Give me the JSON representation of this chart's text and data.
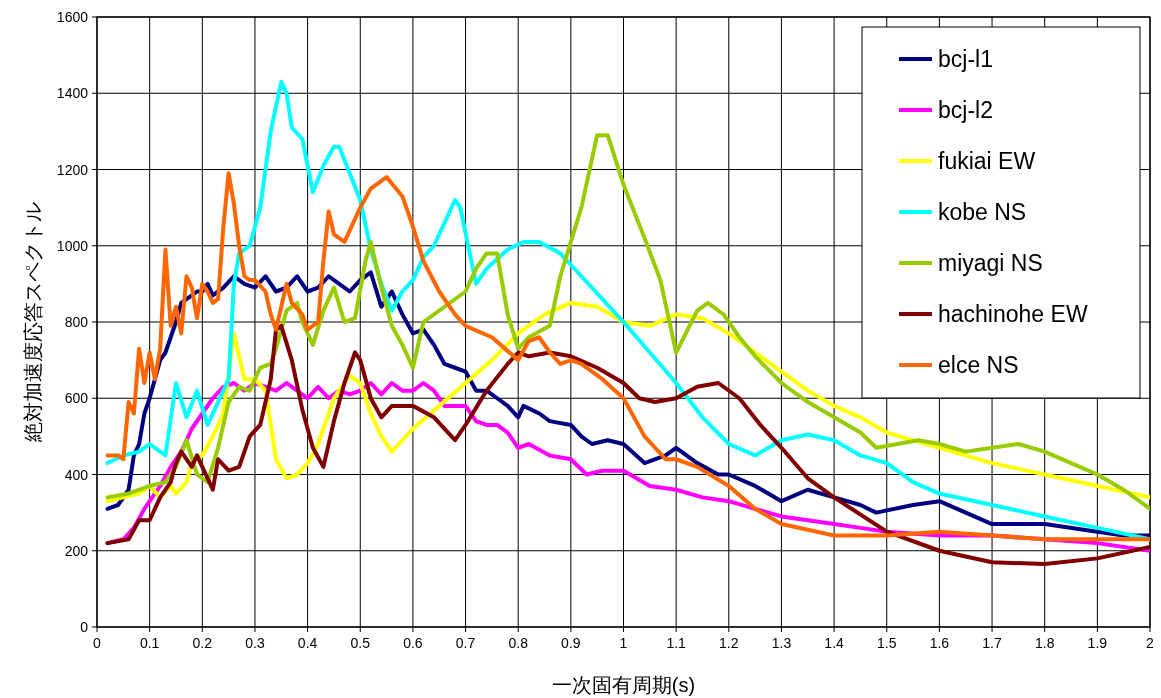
{
  "chart_data": {
    "type": "line",
    "xlabel": "一次固有周期(s)",
    "ylabel": "絶対加速度応答スペクトル",
    "xlim": [
      0,
      2
    ],
    "xticks": [
      0,
      0.1,
      0.2,
      0.3,
      0.4,
      0.5,
      0.6,
      0.7,
      0.8,
      0.9,
      1,
      1.1,
      1.2,
      1.3,
      1.4,
      1.5,
      1.6,
      1.7,
      1.8,
      1.9,
      2
    ],
    "ylim": [
      0,
      1600
    ],
    "yticks": [
      0,
      200,
      400,
      600,
      800,
      1000,
      1200,
      1400,
      1600
    ],
    "grid": true,
    "legend": "top right",
    "series": [
      {
        "name": "bcj-l1",
        "color": "#000080",
        "x": [
          0.02,
          0.04,
          0.06,
          0.07,
          0.08,
          0.09,
          0.1,
          0.11,
          0.12,
          0.13,
          0.14,
          0.15,
          0.16,
          0.17,
          0.18,
          0.19,
          0.2,
          0.21,
          0.22,
          0.24,
          0.26,
          0.28,
          0.3,
          0.32,
          0.34,
          0.36,
          0.38,
          0.4,
          0.42,
          0.44,
          0.46,
          0.48,
          0.5,
          0.52,
          0.54,
          0.56,
          0.58,
          0.6,
          0.62,
          0.64,
          0.66,
          0.68,
          0.7,
          0.72,
          0.74,
          0.76,
          0.78,
          0.8,
          0.81,
          0.84,
          0.86,
          0.9,
          0.92,
          0.94,
          0.97,
          1.0,
          1.04,
          1.08,
          1.1,
          1.14,
          1.18,
          1.2,
          1.25,
          1.3,
          1.35,
          1.4,
          1.45,
          1.48,
          1.55,
          1.6,
          1.65,
          1.7,
          1.8,
          1.9,
          1.95,
          2.0
        ],
        "values": [
          310,
          320,
          360,
          450,
          480,
          560,
          600,
          650,
          700,
          720,
          760,
          800,
          850,
          860,
          870,
          880,
          880,
          900,
          870,
          890,
          920,
          900,
          890,
          920,
          880,
          890,
          920,
          880,
          890,
          920,
          900,
          880,
          910,
          930,
          840,
          880,
          820,
          770,
          780,
          740,
          690,
          680,
          670,
          620,
          620,
          600,
          580,
          550,
          580,
          560,
          540,
          530,
          500,
          480,
          490,
          480,
          430,
          450,
          470,
          430,
          400,
          400,
          370,
          330,
          360,
          340,
          320,
          300,
          320,
          330,
          300,
          270,
          270,
          250,
          240,
          240
        ]
      },
      {
        "name": "bcj-l2",
        "color": "#ff00ff",
        "x": [
          0.02,
          0.05,
          0.07,
          0.09,
          0.1,
          0.12,
          0.14,
          0.16,
          0.18,
          0.2,
          0.22,
          0.24,
          0.26,
          0.28,
          0.3,
          0.32,
          0.34,
          0.36,
          0.38,
          0.4,
          0.42,
          0.44,
          0.46,
          0.48,
          0.5,
          0.52,
          0.54,
          0.56,
          0.58,
          0.6,
          0.62,
          0.64,
          0.66,
          0.7,
          0.72,
          0.74,
          0.76,
          0.78,
          0.8,
          0.82,
          0.86,
          0.9,
          0.93,
          0.96,
          1.0,
          1.05,
          1.1,
          1.15,
          1.2,
          1.25,
          1.3,
          1.35,
          1.4,
          1.45,
          1.5,
          1.6,
          1.7,
          1.8,
          1.9,
          2.0
        ],
        "values": [
          220,
          230,
          260,
          310,
          330,
          370,
          420,
          460,
          520,
          560,
          600,
          630,
          640,
          620,
          640,
          630,
          620,
          640,
          620,
          600,
          630,
          600,
          620,
          610,
          620,
          640,
          610,
          640,
          620,
          620,
          640,
          620,
          580,
          580,
          540,
          530,
          530,
          510,
          470,
          480,
          450,
          440,
          400,
          410,
          410,
          370,
          360,
          340,
          330,
          310,
          290,
          280,
          270,
          260,
          250,
          240,
          240,
          230,
          220,
          200
        ]
      },
      {
        "name": "fukiai EW",
        "color": "#ffff00",
        "x": [
          0.02,
          0.05,
          0.08,
          0.1,
          0.12,
          0.14,
          0.15,
          0.17,
          0.18,
          0.2,
          0.22,
          0.24,
          0.26,
          0.28,
          0.3,
          0.32,
          0.34,
          0.36,
          0.38,
          0.4,
          0.42,
          0.45,
          0.48,
          0.5,
          0.52,
          0.54,
          0.56,
          0.6,
          0.65,
          0.7,
          0.75,
          0.8,
          0.85,
          0.9,
          0.95,
          1.0,
          1.05,
          1.1,
          1.15,
          1.2,
          1.25,
          1.3,
          1.35,
          1.4,
          1.45,
          1.5,
          1.6,
          1.7,
          1.8,
          1.9,
          2.0
        ],
        "values": [
          330,
          340,
          350,
          370,
          340,
          370,
          350,
          380,
          430,
          450,
          500,
          560,
          770,
          650,
          650,
          620,
          440,
          390,
          400,
          430,
          480,
          600,
          660,
          640,
          560,
          500,
          460,
          520,
          580,
          640,
          700,
          770,
          820,
          850,
          840,
          800,
          790,
          820,
          810,
          770,
          720,
          670,
          620,
          580,
          550,
          510,
          470,
          430,
          400,
          370,
          340
        ]
      },
      {
        "name": "kobe NS",
        "color": "#00ffff",
        "x": [
          0.02,
          0.05,
          0.08,
          0.1,
          0.12,
          0.13,
          0.15,
          0.17,
          0.19,
          0.21,
          0.23,
          0.25,
          0.26,
          0.27,
          0.29,
          0.31,
          0.33,
          0.35,
          0.36,
          0.37,
          0.39,
          0.41,
          0.43,
          0.45,
          0.46,
          0.48,
          0.5,
          0.52,
          0.54,
          0.56,
          0.58,
          0.6,
          0.62,
          0.64,
          0.66,
          0.68,
          0.69,
          0.72,
          0.74,
          0.78,
          0.81,
          0.84,
          0.88,
          0.92,
          0.96,
          1.0,
          1.05,
          1.1,
          1.15,
          1.2,
          1.25,
          1.3,
          1.35,
          1.4,
          1.45,
          1.5,
          1.55,
          1.6,
          1.7,
          1.8,
          1.9,
          2.0
        ],
        "values": [
          430,
          450,
          460,
          480,
          460,
          450,
          640,
          550,
          620,
          530,
          590,
          650,
          900,
          980,
          1000,
          1100,
          1300,
          1430,
          1400,
          1310,
          1280,
          1140,
          1210,
          1260,
          1260,
          1190,
          1120,
          990,
          900,
          830,
          880,
          910,
          970,
          1000,
          1060,
          1120,
          1100,
          900,
          940,
          990,
          1010,
          1010,
          980,
          920,
          860,
          800,
          720,
          640,
          550,
          480,
          450,
          490,
          505,
          490,
          450,
          430,
          380,
          350,
          320,
          290,
          260,
          230
        ]
      },
      {
        "name": "miyagi NS",
        "color": "#99cc00",
        "x": [
          0.02,
          0.06,
          0.1,
          0.13,
          0.15,
          0.17,
          0.19,
          0.21,
          0.23,
          0.25,
          0.27,
          0.29,
          0.31,
          0.33,
          0.34,
          0.36,
          0.38,
          0.39,
          0.41,
          0.43,
          0.45,
          0.47,
          0.49,
          0.51,
          0.52,
          0.54,
          0.56,
          0.58,
          0.6,
          0.62,
          0.66,
          0.7,
          0.72,
          0.74,
          0.76,
          0.78,
          0.8,
          0.82,
          0.86,
          0.88,
          0.92,
          0.95,
          0.97,
          1.0,
          1.04,
          1.07,
          1.1,
          1.14,
          1.16,
          1.19,
          1.22,
          1.25,
          1.3,
          1.35,
          1.4,
          1.45,
          1.48,
          1.52,
          1.56,
          1.6,
          1.65,
          1.7,
          1.75,
          1.8,
          1.85,
          1.9,
          1.95,
          2.0
        ],
        "values": [
          340,
          350,
          370,
          380,
          420,
          490,
          400,
          380,
          470,
          590,
          630,
          620,
          680,
          690,
          730,
          830,
          850,
          800,
          740,
          830,
          890,
          800,
          810,
          960,
          1010,
          890,
          790,
          740,
          680,
          800,
          840,
          880,
          940,
          980,
          980,
          820,
          730,
          760,
          790,
          920,
          1100,
          1290,
          1290,
          1160,
          1020,
          910,
          720,
          830,
          850,
          820,
          760,
          710,
          640,
          590,
          550,
          510,
          470,
          480,
          490,
          480,
          460,
          470,
          480,
          460,
          430,
          400,
          360,
          310
        ]
      },
      {
        "name": "hachinohe EW",
        "color": "#800000",
        "x": [
          0.02,
          0.06,
          0.08,
          0.1,
          0.12,
          0.14,
          0.15,
          0.16,
          0.18,
          0.19,
          0.2,
          0.22,
          0.23,
          0.25,
          0.27,
          0.29,
          0.31,
          0.33,
          0.34,
          0.35,
          0.37,
          0.39,
          0.41,
          0.43,
          0.45,
          0.47,
          0.49,
          0.5,
          0.52,
          0.54,
          0.56,
          0.6,
          0.64,
          0.68,
          0.7,
          0.74,
          0.78,
          0.8,
          0.82,
          0.86,
          0.9,
          0.95,
          1.0,
          1.03,
          1.06,
          1.1,
          1.14,
          1.18,
          1.22,
          1.26,
          1.3,
          1.35,
          1.4,
          1.5,
          1.6,
          1.7,
          1.8,
          1.9,
          2.0
        ],
        "values": [
          220,
          230,
          280,
          280,
          340,
          380,
          430,
          460,
          420,
          450,
          420,
          360,
          440,
          410,
          420,
          500,
          530,
          650,
          780,
          790,
          700,
          570,
          470,
          420,
          540,
          640,
          720,
          700,
          600,
          550,
          580,
          580,
          550,
          490,
          530,
          620,
          690,
          720,
          710,
          720,
          710,
          680,
          640,
          600,
          590,
          600,
          630,
          640,
          600,
          530,
          470,
          390,
          340,
          250,
          200,
          170,
          165,
          180,
          210
        ]
      },
      {
        "name": "elce NS",
        "color": "#ff6600",
        "x": [
          0.02,
          0.04,
          0.05,
          0.06,
          0.07,
          0.08,
          0.09,
          0.1,
          0.11,
          0.12,
          0.13,
          0.14,
          0.15,
          0.16,
          0.17,
          0.18,
          0.19,
          0.2,
          0.21,
          0.22,
          0.23,
          0.24,
          0.25,
          0.26,
          0.27,
          0.28,
          0.29,
          0.3,
          0.32,
          0.33,
          0.34,
          0.35,
          0.36,
          0.37,
          0.39,
          0.4,
          0.42,
          0.43,
          0.44,
          0.45,
          0.47,
          0.5,
          0.52,
          0.55,
          0.58,
          0.6,
          0.62,
          0.65,
          0.68,
          0.7,
          0.75,
          0.8,
          0.82,
          0.84,
          0.86,
          0.88,
          0.9,
          0.92,
          0.96,
          1.0,
          1.04,
          1.08,
          1.1,
          1.14,
          1.2,
          1.25,
          1.3,
          1.4,
          1.5,
          1.6,
          1.7,
          1.8,
          1.9,
          2.0
        ],
        "values": [
          450,
          450,
          440,
          590,
          560,
          730,
          640,
          720,
          650,
          730,
          990,
          790,
          840,
          770,
          920,
          890,
          810,
          900,
          880,
          850,
          860,
          1050,
          1190,
          1110,
          1000,
          920,
          910,
          910,
          880,
          820,
          780,
          840,
          900,
          850,
          820,
          780,
          800,
          960,
          1090,
          1030,
          1010,
          1100,
          1150,
          1180,
          1130,
          1050,
          960,
          880,
          820,
          790,
          760,
          700,
          750,
          760,
          720,
          690,
          700,
          690,
          650,
          600,
          500,
          440,
          440,
          420,
          370,
          310,
          270,
          240,
          240,
          250,
          240,
          230,
          230,
          230
        ]
      }
    ]
  }
}
